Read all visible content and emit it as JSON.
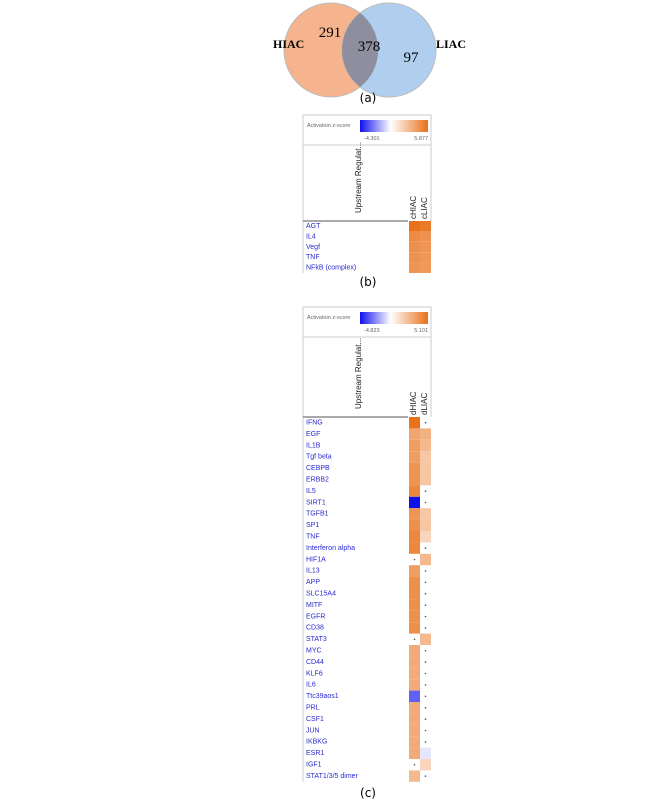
{
  "venn": {
    "left_label": "HIAC",
    "right_label": "LIAC",
    "left_only": 291,
    "both": 378,
    "right_only": 97,
    "caption": "(a)"
  },
  "panel_b": {
    "legend_title": "Activation z-score",
    "zmin": -4.301,
    "zmax": 5.877,
    "column_header": "Upstream Regulat...",
    "columns": [
      "cHIAC",
      "cLIAC"
    ],
    "rows": [
      "AGT",
      "IL4",
      "Vegf",
      "TNF",
      "NFkB (complex)"
    ],
    "values": [
      [
        5.877,
        5.5
      ],
      [
        4.8,
        4.5
      ],
      [
        4.6,
        4.4
      ],
      [
        4.5,
        4.3
      ],
      [
        4.4,
        4.2
      ]
    ],
    "caption": "(b)"
  },
  "panel_c": {
    "legend_title": "Activation z-score",
    "zmin": -4.823,
    "zmax": 5.101,
    "column_header": "Upstream Regulat...",
    "columns": [
      "dHIAC",
      "dLIAC"
    ],
    "rows": [
      "IFNG",
      "EGF",
      "IL1B",
      "Tgf beta",
      "CEBPB",
      "ERBB2",
      "IL5",
      "SIRT1",
      "TGFB1",
      "SP1",
      "TNF",
      "Interferon alpha",
      "HIF1A",
      "IL13",
      "APP",
      "SLC15A4",
      "MITF",
      "EGFR",
      "CD38",
      "STAT3",
      "MYC",
      "CD44",
      "KLF6",
      "IL6",
      "Ttc39aos1",
      "PRL",
      "CSF1",
      "JUN",
      "IKBKG",
      "ESR1",
      "IGF1",
      "STAT1/3/5 dimer"
    ],
    "values": [
      [
        5.101,
        null
      ],
      [
        3.2,
        2.8
      ],
      [
        3.5,
        2.5
      ],
      [
        3.5,
        2
      ],
      [
        3.8,
        2
      ],
      [
        3.8,
        2
      ],
      [
        4.3,
        null
      ],
      [
        -4.823,
        null
      ],
      [
        3.8,
        2
      ],
      [
        4,
        2
      ],
      [
        4.3,
        1.5
      ],
      [
        4.3,
        null
      ],
      [
        null,
        2.5
      ],
      [
        3.5,
        null
      ],
      [
        4,
        null
      ],
      [
        4,
        null
      ],
      [
        4,
        null
      ],
      [
        4,
        null
      ],
      [
        4,
        null
      ],
      [
        null,
        2.5
      ],
      [
        3,
        null
      ],
      [
        3,
        null
      ],
      [
        3,
        null
      ],
      [
        3,
        null
      ],
      [
        -3.2,
        null
      ],
      [
        3,
        null
      ],
      [
        3,
        null
      ],
      [
        3,
        null
      ],
      [
        3,
        null
      ],
      [
        3,
        -0.5
      ],
      [
        null,
        1.5
      ],
      [
        2.5,
        null
      ]
    ],
    "caption": "(c)"
  }
}
